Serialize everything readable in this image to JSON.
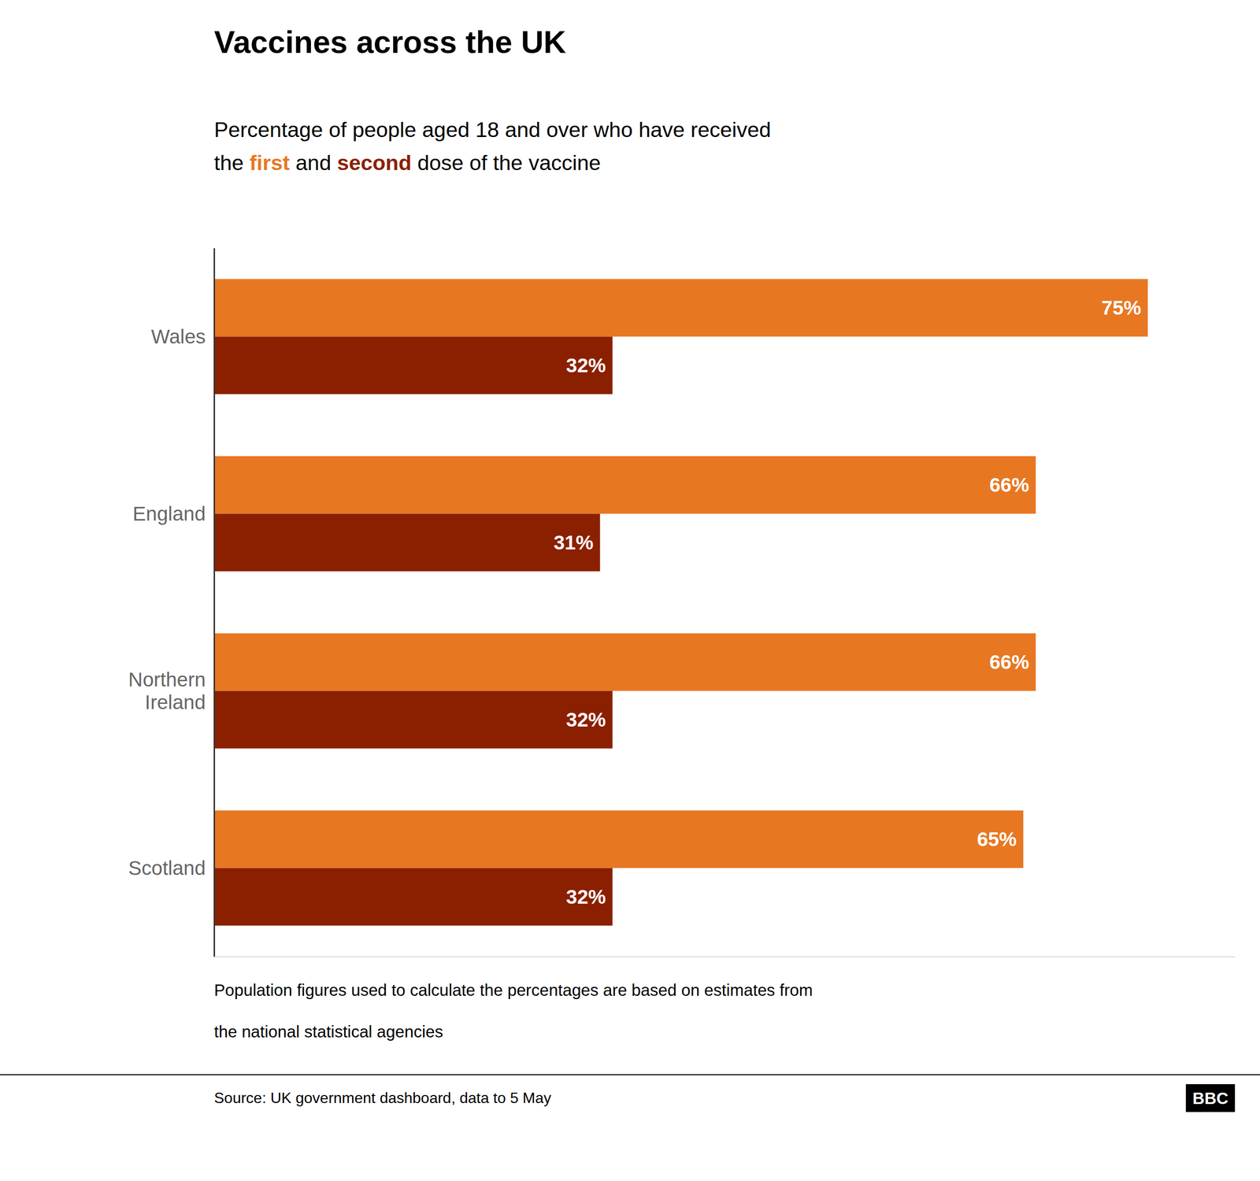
{
  "chart_data": {
    "type": "bar",
    "orientation": "horizontal",
    "title": "Vaccines across the UK",
    "subtitle": "Percentage of people aged 18 and over who have received",
    "subtitle_parts": [
      "the ",
      " and ",
      " dose of the vaccine"
    ],
    "categories": [
      "Wales",
      "England",
      "Northern\nIreland",
      "Scotland"
    ],
    "series": [
      {
        "name": "first",
        "color": "#E87722",
        "values": [
          75,
          66,
          66,
          65
        ],
        "value_labels": [
          "75%",
          "66%",
          "66%",
          "65%"
        ]
      },
      {
        "name": "second",
        "color": "#8B2000",
        "values": [
          32,
          31,
          32,
          32
        ],
        "value_labels": [
          "32%",
          "31%",
          "32%",
          "32%"
        ]
      }
    ],
    "xlim": [
      0,
      82
    ],
    "data_labels": true,
    "tick_labels": "y",
    "grid": false,
    "footnote": [
      "Population figures used to calculate the percentages are based on estimates from",
      "the national statistical agencies"
    ],
    "source": "Source: UK government dashboard, data to 5 May",
    "logo": "BBC"
  }
}
